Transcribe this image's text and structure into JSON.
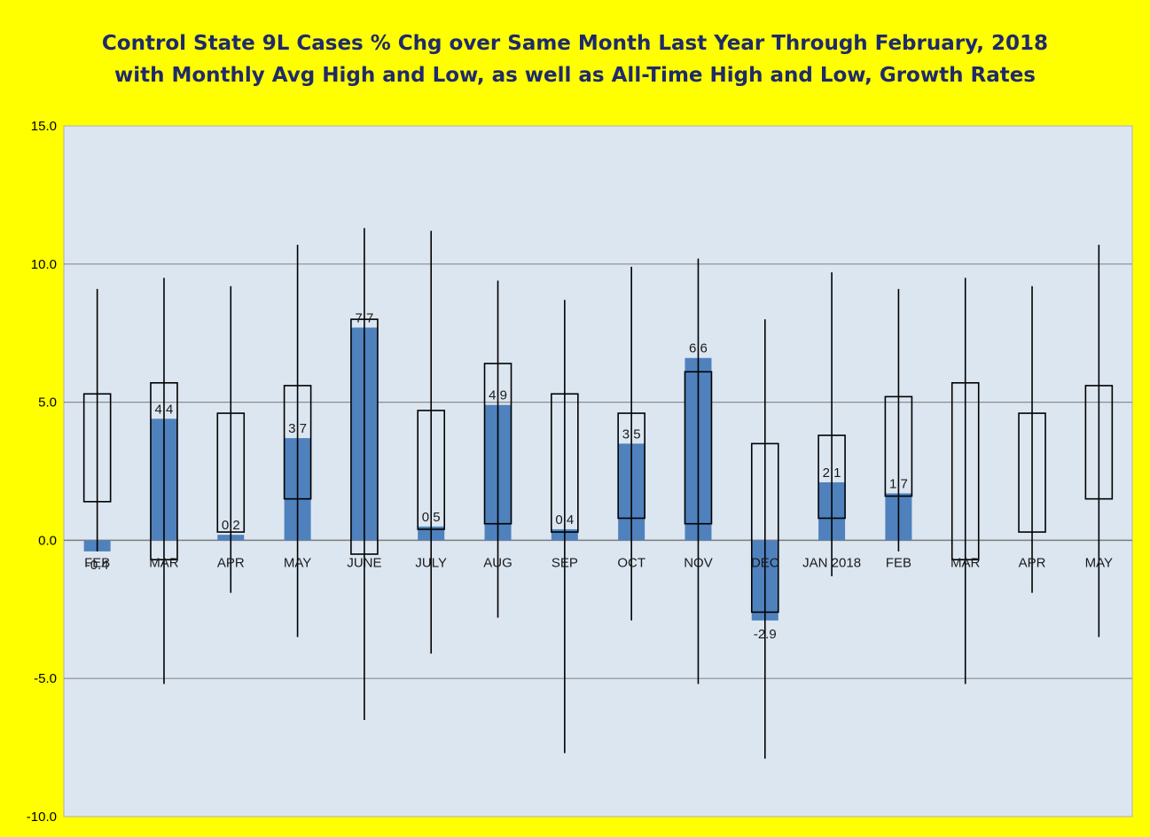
{
  "chart_data": {
    "type": "bar",
    "title": "Control State 9L Cases % Chg over Same Month Last Year Through February, 2018",
    "subtitle": "with Monthly Avg High and Low, as well as All-Time High and Low,  Growth Rates",
    "ylim": [
      -10.0,
      15.0
    ],
    "yticks": [
      "-10.0",
      "-5.0",
      "0.0",
      "5.0",
      "10.0",
      "15.0"
    ],
    "ytick_values": [
      -10,
      -5,
      0,
      5,
      10,
      15
    ],
    "grid": true,
    "categories": [
      "FEB",
      "MAR",
      "APR",
      "MAY",
      "JUNE",
      "JULY",
      "AUG",
      "SEP",
      "OCT",
      "NOV",
      "DEC",
      "JAN 2018",
      "FEB",
      "MAR",
      "APR",
      "MAY"
    ],
    "series": [
      {
        "type": "bar",
        "values": [
          -0.4,
          4.4,
          0.2,
          3.7,
          7.7,
          0.5,
          4.9,
          0.4,
          3.5,
          6.6,
          -2.9,
          2.1,
          1.7,
          null,
          null,
          null
        ],
        "labels": [
          "-0.4",
          "4.4",
          "0.2",
          "3.7",
          "7.7",
          "0.5",
          "4.9",
          "0.4",
          "3.5",
          "6.6",
          "-2.9",
          "2.1",
          "1.7",
          "",
          "",
          ""
        ],
        "color": "#4f81bd"
      },
      {
        "type": "avg-range",
        "low": [
          1.4,
          -0.7,
          0.3,
          1.5,
          -0.5,
          0.4,
          0.6,
          0.3,
          0.8,
          0.6,
          -2.6,
          0.8,
          1.6,
          -0.7,
          0.3,
          1.5
        ],
        "high": [
          5.3,
          5.7,
          4.6,
          5.6,
          8.0,
          4.7,
          6.4,
          5.3,
          4.6,
          6.1,
          3.5,
          3.8,
          5.2,
          5.7,
          4.6,
          5.6
        ]
      },
      {
        "type": "all-time-range",
        "low": [
          -0.4,
          -5.2,
          -1.9,
          -3.5,
          -6.5,
          -4.1,
          -2.8,
          -7.7,
          -2.9,
          -5.2,
          -7.9,
          -1.3,
          -0.4,
          -5.2,
          -1.9,
          -3.5
        ],
        "high": [
          9.1,
          9.5,
          9.2,
          10.7,
          11.3,
          11.2,
          9.4,
          8.7,
          9.9,
          10.2,
          8.0,
          9.7,
          9.1,
          9.5,
          9.2,
          10.7
        ]
      }
    ],
    "colors": {
      "background": "#ffff00",
      "plot": "#dce6f1",
      "bar": "#4f81bd",
      "title": "#1f2a6b"
    }
  }
}
